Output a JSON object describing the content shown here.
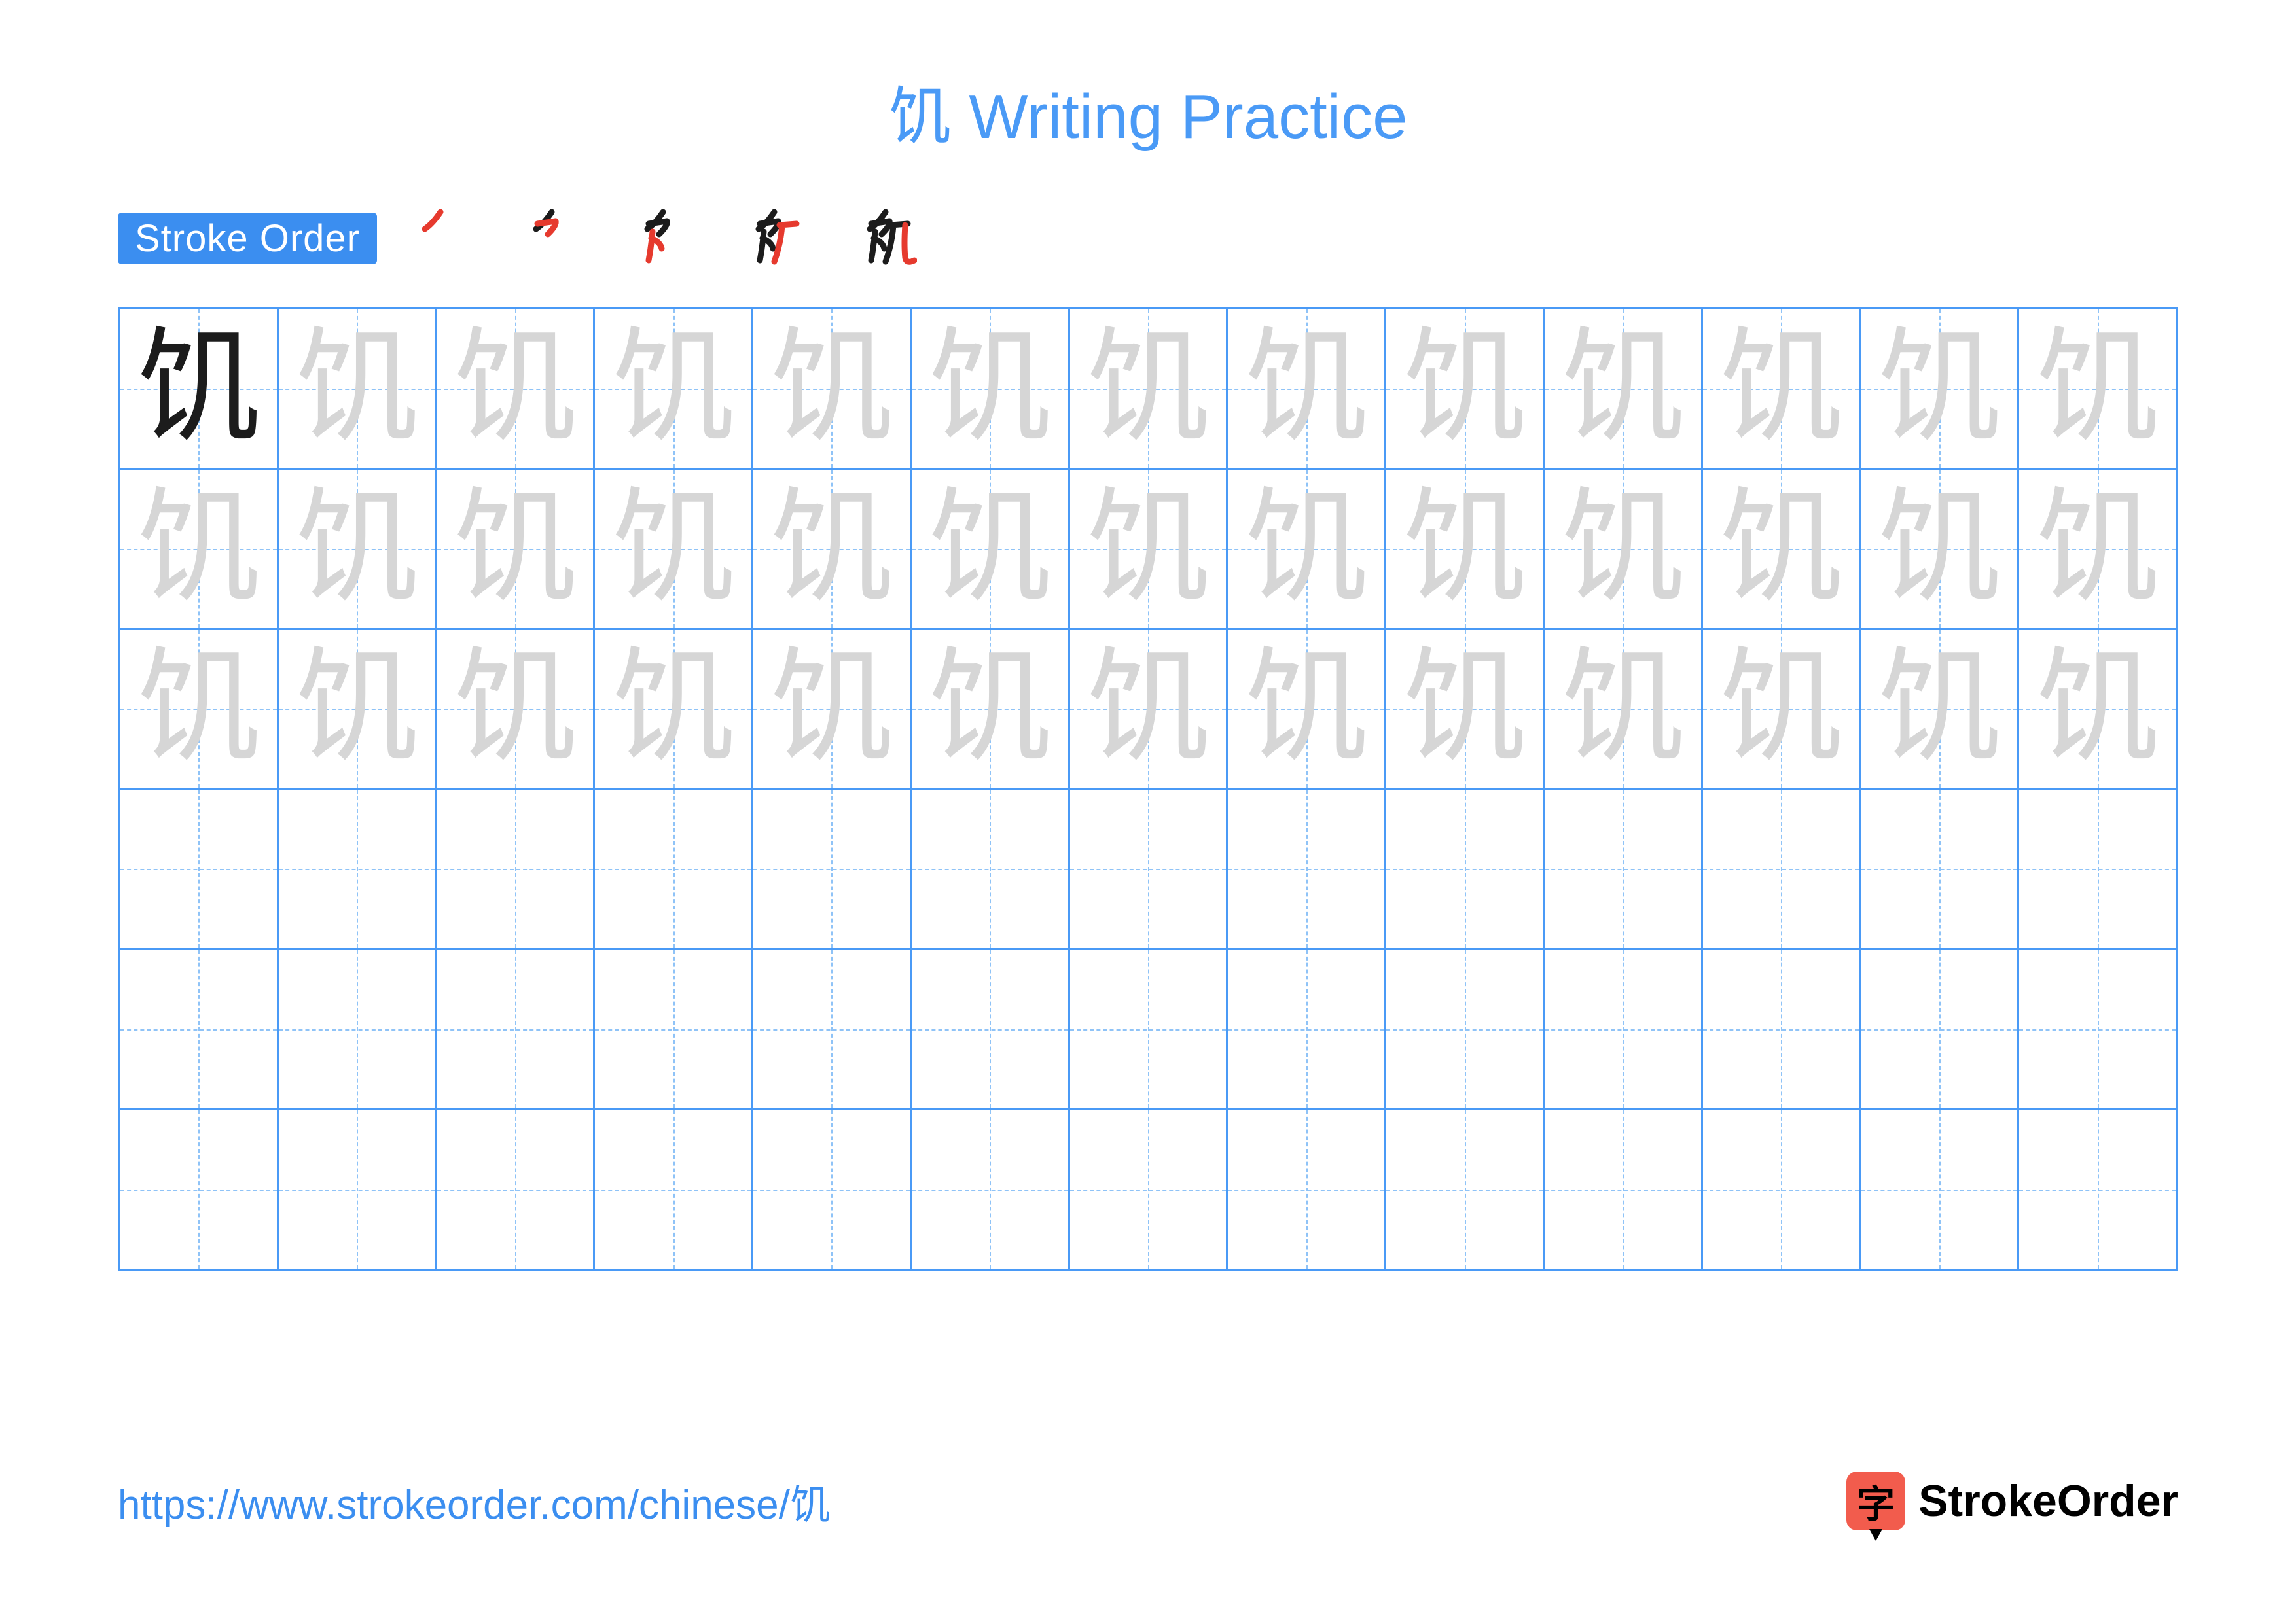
{
  "title": "饥 Writing Practice",
  "title_color": "#4a9af6",
  "stroke_label": "Stroke Order",
  "stroke_label_bg": "#3b8ef0",
  "stroke_label_color": "#ffffff",
  "character": "饥",
  "stroke_count": 5,
  "grid": {
    "rows": 6,
    "cols": 13,
    "border_color": "#4a9af6",
    "guide_color": "#8fc3f7",
    "trace_rows": 3,
    "model_color": "#1c1c1c",
    "trace_color": "#d6d6d6"
  },
  "stroke_colors": {
    "done": "#1c1c1c",
    "current": "#e63a2e"
  },
  "footer_url": "https://www.strokeorder.com/chinese/饥",
  "footer_url_color": "#3b8ef0",
  "logo": {
    "badge_char": "字",
    "badge_bg": "#f25c4d",
    "text": "StrokeOrder"
  },
  "background_color": "#ffffff"
}
